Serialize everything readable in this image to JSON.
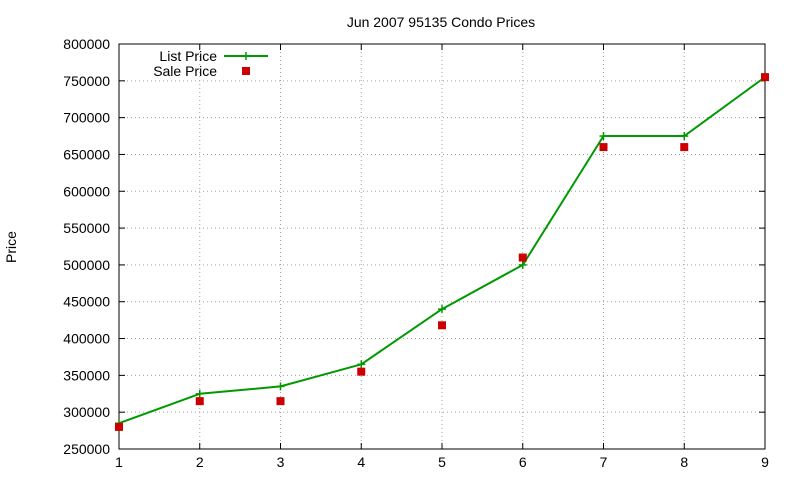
{
  "chart_data": {
    "type": "line",
    "title": "Jun 2007 95135 Condo Prices",
    "xlabel": "",
    "ylabel": "Price",
    "x": [
      1,
      2,
      3,
      4,
      5,
      6,
      7,
      8,
      9
    ],
    "xlim": [
      1,
      9
    ],
    "ylim": [
      250000,
      800000
    ],
    "x_ticks": [
      "1",
      "2",
      "3",
      "4",
      "5",
      "6",
      "7",
      "8",
      "9"
    ],
    "y_ticks": [
      "250000",
      "300000",
      "350000",
      "400000",
      "450000",
      "500000",
      "550000",
      "600000",
      "650000",
      "700000",
      "750000",
      "800000"
    ],
    "grid": true,
    "legend_position": "top-left",
    "series": [
      {
        "name": "List Price",
        "style": "line-with-plus-markers",
        "color": "#009900",
        "values": [
          285000,
          325000,
          335000,
          365000,
          440000,
          500000,
          675000,
          675000,
          755000
        ]
      },
      {
        "name": "Sale Price",
        "style": "square-points",
        "color": "#cc0000",
        "values": [
          280000,
          315000,
          315000,
          355000,
          418000,
          510000,
          660000,
          660000,
          755000
        ]
      }
    ]
  }
}
